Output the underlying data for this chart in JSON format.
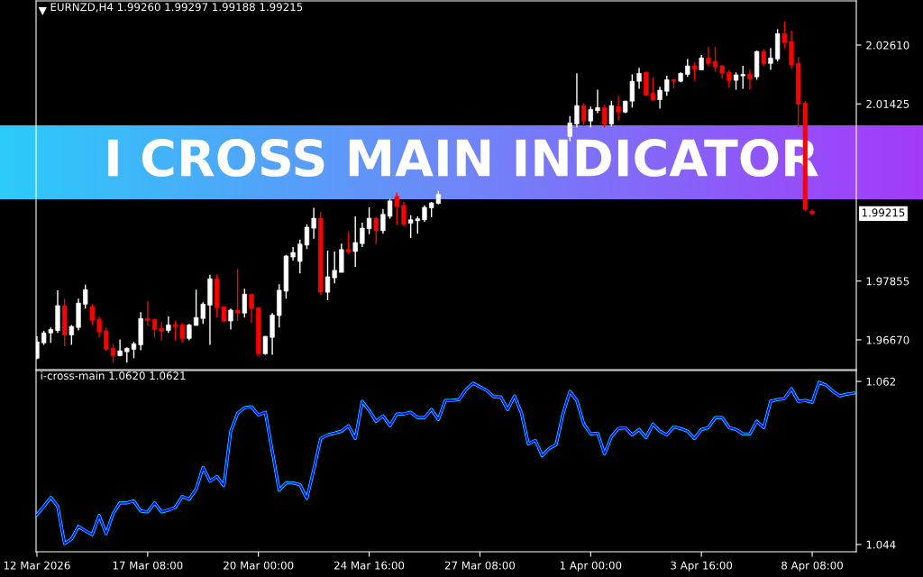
{
  "chart_data": [
    {
      "type": "candlestick",
      "title": "I CROSS MAIN INDICATOR",
      "annotations": [
        "EURNZD,H4 1.99260 1.99297 1.99188 1.99215",
        "1.99215"
      ],
      "categories": [
        null,
        null,
        null,
        null,
        null,
        null,
        null,
        null,
        null,
        null,
        null,
        null,
        null,
        null,
        null,
        null,
        null,
        null,
        null,
        null,
        null,
        null,
        null,
        null,
        null,
        null,
        null,
        null,
        null,
        null,
        null,
        null,
        null,
        null,
        null,
        null,
        null,
        null,
        null,
        null,
        null,
        null,
        null,
        null,
        null,
        null,
        null,
        null,
        null,
        null,
        null,
        null,
        null,
        null,
        null,
        null,
        null,
        null,
        null,
        null,
        null,
        null,
        null,
        null,
        null,
        null,
        null,
        null,
        null,
        null,
        null,
        null,
        null,
        null,
        null,
        null,
        null,
        null,
        null,
        null,
        null,
        null,
        null,
        null,
        null,
        null,
        null,
        null,
        null,
        null,
        null,
        null,
        null,
        null,
        null,
        null,
        null,
        null,
        null,
        null,
        null,
        null,
        null,
        null,
        null,
        null,
        null,
        null,
        null,
        null,
        null,
        null,
        null,
        null,
        null,
        null,
        null,
        null,
        null
      ],
      "ohlc": [
        [
          1.963,
          1.9674,
          1.9628,
          1.9663
        ],
        [
          1.9661,
          1.9685,
          1.9657,
          1.9681
        ],
        [
          1.9681,
          1.9692,
          1.9661,
          1.9688
        ],
        [
          1.9686,
          1.9767,
          1.9681,
          1.9736
        ],
        [
          1.9736,
          1.975,
          1.9654,
          1.9677
        ],
        [
          1.9677,
          1.9697,
          1.9657,
          1.9694
        ],
        [
          1.9692,
          1.975,
          1.9686,
          1.9741
        ],
        [
          1.9739,
          1.9778,
          1.973,
          1.9768
        ],
        [
          1.9734,
          1.9739,
          1.9697,
          1.9706
        ],
        [
          1.9708,
          1.9714,
          1.9672,
          1.9683
        ],
        [
          1.9685,
          1.9692,
          1.9645,
          1.9648
        ],
        [
          1.965,
          1.9659,
          1.9621,
          1.9635
        ],
        [
          1.9635,
          1.9668,
          1.9634,
          1.9645
        ],
        [
          1.9643,
          1.9652,
          1.9621,
          1.965
        ],
        [
          1.9648,
          1.9663,
          1.963,
          1.9659
        ],
        [
          1.9657,
          1.9723,
          1.9646,
          1.971
        ],
        [
          1.971,
          1.9745,
          1.9696,
          1.9706
        ],
        [
          1.9708,
          1.971,
          1.9672,
          1.9688
        ],
        [
          1.969,
          1.9703,
          1.9666,
          1.9685
        ],
        [
          1.9686,
          1.9714,
          1.9681,
          1.9697
        ],
        [
          1.9697,
          1.9705,
          1.9666,
          1.9694
        ],
        [
          1.9697,
          1.9701,
          1.9661,
          1.967
        ],
        [
          1.967,
          1.9699,
          1.9666,
          1.9697
        ],
        [
          1.9696,
          1.9768,
          1.9696,
          1.9712
        ],
        [
          1.971,
          1.9743,
          1.9699,
          1.9739
        ],
        [
          1.9737,
          1.9798,
          1.9657,
          1.979
        ],
        [
          1.979,
          1.9799,
          1.9712,
          1.9732
        ],
        [
          1.9734,
          1.9734,
          1.9703,
          1.9705
        ],
        [
          1.9705,
          1.973,
          1.9688,
          1.9727
        ],
        [
          1.9727,
          1.981,
          1.9705,
          1.9721
        ],
        [
          1.9721,
          1.977,
          1.9712,
          1.9759
        ],
        [
          1.9759,
          1.9759,
          1.9701,
          1.973
        ],
        [
          1.9732,
          1.9732,
          1.9635,
          1.9639
        ],
        [
          1.9639,
          1.9675,
          1.9637,
          1.9674
        ],
        [
          1.9672,
          1.9721,
          1.9637,
          1.9717
        ],
        [
          1.9716,
          1.9779,
          1.9692,
          1.9767
        ],
        [
          1.9765,
          1.9838,
          1.975,
          1.9836
        ],
        [
          1.9834,
          1.9854,
          1.9827,
          1.9843
        ],
        [
          1.9825,
          1.9869,
          1.9801,
          1.986
        ],
        [
          1.9858,
          1.99,
          1.985,
          1.9894
        ],
        [
          1.9892,
          1.9933,
          1.9871,
          1.9912
        ],
        [
          1.9912,
          1.9925,
          1.9758,
          1.9763
        ],
        [
          1.9763,
          1.9847,
          1.9747,
          1.9794
        ],
        [
          1.9792,
          1.9845,
          1.9781,
          1.9807
        ],
        [
          1.9803,
          1.9861,
          1.9803,
          1.9849
        ],
        [
          1.9849,
          1.9885,
          1.984,
          1.9845
        ],
        [
          1.9845,
          1.9916,
          1.9814,
          1.9863
        ],
        [
          1.9861,
          1.9903,
          1.9854,
          1.9892
        ],
        [
          1.9891,
          1.9934,
          1.988,
          1.9912
        ],
        [
          1.9912,
          1.9914,
          1.986,
          1.9887
        ],
        [
          1.9887,
          1.9931,
          1.9881,
          1.992
        ],
        [
          1.9916,
          1.9951,
          1.9911,
          1.9947
        ],
        [
          1.9956,
          1.9964,
          1.9898,
          1.9936
        ],
        [
          1.9938,
          1.9945,
          1.9896,
          1.99
        ],
        [
          1.9902,
          1.9918,
          1.9872,
          1.9909
        ],
        [
          1.9907,
          1.9916,
          1.9881,
          1.9911
        ],
        [
          1.9909,
          1.9938,
          1.9905,
          1.9934
        ],
        [
          1.9933,
          1.9945,
          1.9914,
          1.9943
        ],
        [
          1.9942,
          1.9967,
          1.994,
          1.996
        ],
        null,
        null,
        null,
        null,
        null,
        null,
        null,
        null,
        null,
        null,
        null,
        null,
        null,
        null,
        null,
        null,
        null,
        null,
        [
          2.0077,
          2.0118,
          2.0067,
          2.0104
        ],
        [
          2.0102,
          2.0204,
          2.0095,
          2.0139
        ],
        [
          2.0139,
          2.0144,
          2.0097,
          2.0108
        ],
        [
          2.0108,
          2.0137,
          2.0095,
          2.0131
        ],
        [
          2.0129,
          2.0171,
          2.0124,
          2.0135
        ],
        [
          2.0135,
          2.014,
          2.0095,
          2.0102
        ],
        [
          2.0102,
          2.0149,
          2.0097,
          2.0139
        ],
        [
          2.0137,
          2.0159,
          2.0109,
          2.0126
        ],
        [
          2.0126,
          2.0149,
          2.0124,
          2.0148
        ],
        [
          2.0148,
          2.0202,
          2.0135,
          2.0188
        ],
        [
          2.0188,
          2.0215,
          2.0173,
          2.0204
        ],
        [
          2.0206,
          2.0208,
          2.0159,
          2.016
        ],
        [
          2.0164,
          2.0195,
          2.0149,
          2.0151
        ],
        [
          2.0151,
          2.0177,
          2.0133,
          2.017
        ],
        [
          2.0168,
          2.0199,
          2.0159,
          2.0191
        ],
        [
          2.0191,
          2.0193,
          2.0173,
          2.0188
        ],
        [
          2.0188,
          2.0206,
          2.0186,
          2.0204
        ],
        [
          2.0202,
          2.0233,
          2.0197,
          2.0219
        ],
        [
          2.0219,
          2.0226,
          2.019,
          2.0213
        ],
        [
          2.0211,
          2.0241,
          2.021,
          2.0235
        ],
        [
          2.0235,
          2.0257,
          2.0219,
          2.0224
        ],
        [
          2.0228,
          2.0257,
          2.0208,
          2.0217
        ],
        [
          2.0219,
          2.0221,
          2.0193,
          2.0204
        ],
        [
          2.0206,
          2.0211,
          2.0175,
          2.019
        ],
        [
          2.019,
          2.0206,
          2.0171,
          2.0201
        ],
        [
          2.0199,
          2.0219,
          2.0173,
          2.0202
        ],
        [
          2.0202,
          2.0211,
          2.0171,
          2.0193
        ],
        [
          2.0197,
          2.025,
          2.0191,
          2.0248
        ],
        [
          2.0248,
          2.0253,
          2.0219,
          2.0224
        ],
        [
          2.0224,
          2.0255,
          2.0211,
          2.0235
        ],
        [
          2.0233,
          2.0293,
          2.0228,
          2.0284
        ],
        [
          2.0284,
          2.0308,
          2.0255,
          2.0266
        ],
        [
          2.0268,
          2.029,
          2.0213,
          2.0221
        ],
        [
          2.0224,
          2.0237,
          2.0095,
          2.0142
        ],
        [
          2.0144,
          2.0149,
          1.9926,
          1.993
        ],
        [
          1.9926,
          1.99297,
          1.99188,
          1.99215
        ],
        null,
        null,
        null,
        null,
        null,
        null
      ],
      "colors": [
        "#ffffff",
        "#ffffff",
        "#ffffff",
        "#ffffff",
        "#ff0000",
        "#ffffff",
        "#ffffff",
        "#ffffff",
        "#ff0000",
        "#ff0000",
        "#ff0000",
        "#ff0000",
        "#ffffff",
        "#ffffff",
        "#ffffff",
        "#ffffff",
        "#ff0000",
        "#ff0000",
        "#ff0000",
        "#ffffff",
        "#ff0000",
        "#ff0000",
        "#ffffff",
        "#ffffff",
        "#ffffff",
        "#ffffff",
        "#ff0000",
        "#ff0000",
        "#ffffff",
        "#ff0000",
        "#ffffff",
        "#ff0000",
        "#ff0000",
        "#ffffff",
        "#ffffff",
        "#ffffff",
        "#ffffff",
        "#ffffff",
        "#ffffff",
        "#ffffff",
        "#ffffff",
        "#ff0000",
        "#ffffff",
        "#ffffff",
        "#ffffff",
        "#ff0000",
        "#ffffff",
        "#ffffff",
        "#ffffff",
        "#ff0000",
        "#ffffff",
        "#ffffff",
        "#ff0000",
        "#ff0000",
        "#ffffff",
        "#ffffff",
        "#ffffff",
        "#ffffff",
        "#ffffff",
        null,
        null,
        null,
        null,
        null,
        null,
        null,
        null,
        null,
        null,
        null,
        null,
        null,
        null,
        null,
        null,
        null,
        null,
        "#ffffff",
        "#ffffff",
        "#ff0000",
        "#ffffff",
        "#ffffff",
        "#ff0000",
        "#ffffff",
        "#ff0000",
        "#ffffff",
        "#ffffff",
        "#ffffff",
        "#ff0000",
        "#ff0000",
        "#ffffff",
        "#ffffff",
        "#ff0000",
        "#ffffff",
        "#ffffff",
        "#ff0000",
        "#ffffff",
        "#ff0000",
        "#ff0000",
        "#ff0000",
        "#ff0000",
        "#ffffff",
        "#ffffff",
        "#ff0000",
        "#ffffff",
        "#ff0000",
        "#ffffff",
        "#ffffff",
        "#ff0000",
        "#ff0000",
        "#ff0000",
        "#ff0000",
        "#ff0000",
        null,
        null,
        null,
        null,
        null,
        null
      ],
      "ylim": [
        1.9607,
        2.035
      ],
      "yticks": [
        {
          "value": 1.9667,
          "label": "1.96670"
        },
        {
          "value": 1.97855,
          "label": "1.97855"
        },
        {
          "value": 2.01425,
          "label": "2.01425"
        },
        {
          "value": 2.0261,
          "label": "2.02610"
        }
      ],
      "tick_labels": "y"
    },
    {
      "type": "line",
      "title": "i-cross-main 1.0620 1.0621",
      "categories": [
        "12 Mar 2026",
        null,
        null,
        null,
        null,
        null,
        null,
        null,
        null,
        null,
        null,
        null,
        null,
        null,
        null,
        null,
        "17 Mar 08:00",
        null,
        null,
        null,
        null,
        null,
        null,
        null,
        null,
        null,
        null,
        null,
        null,
        null,
        null,
        null,
        "20 Mar 00:00",
        null,
        null,
        null,
        null,
        null,
        null,
        null,
        null,
        null,
        null,
        null,
        null,
        null,
        null,
        null,
        "24 Mar 16:00",
        null,
        null,
        null,
        null,
        null,
        null,
        null,
        null,
        null,
        null,
        null,
        null,
        null,
        null,
        null,
        "27 Mar 08:00",
        null,
        null,
        null,
        null,
        null,
        null,
        null,
        null,
        null,
        null,
        null,
        null,
        null,
        null,
        null,
        "1 Apr 00:00",
        null,
        null,
        null,
        null,
        null,
        null,
        null,
        null,
        null,
        null,
        null,
        null,
        null,
        null,
        null,
        "3 Apr 16:00",
        null,
        null,
        null,
        null,
        null,
        null,
        null,
        null,
        null,
        null,
        null,
        null,
        null,
        null,
        null,
        "8 Apr 08:00",
        null,
        null,
        null,
        null,
        null,
        null
      ],
      "series": [
        {
          "color": "#00ffff",
          "values": [
            1.0473,
            1.0482,
            1.0492,
            1.0482,
            1.0441,
            1.0446,
            1.046,
            1.0455,
            1.0451,
            1.0472,
            1.0452,
            1.0474,
            1.0486,
            1.0486,
            1.0488,
            1.0477,
            1.0476,
            1.0486,
            1.0476,
            1.0478,
            1.0481,
            1.0493,
            1.049,
            1.0501,
            1.0525,
            1.051,
            1.0515,
            1.0505,
            1.0565,
            1.0585,
            1.0591,
            1.0592,
            1.0583,
            1.0586,
            1.0543,
            1.05,
            1.0508,
            1.0508,
            1.0506,
            1.0491,
            1.0523,
            1.0557,
            1.0561,
            1.0563,
            1.0565,
            1.0571,
            1.0557,
            1.0598,
            1.0588,
            1.0576,
            1.0582,
            1.0571,
            1.0584,
            1.0584,
            1.0586,
            1.058,
            1.058,
            1.0589,
            1.0578,
            1.0599,
            1.0599,
            1.06,
            1.0611,
            1.0618,
            1.0614,
            1.061,
            1.0603,
            1.0603,
            1.0589,
            1.0604,
            1.0585,
            1.0551,
            1.0555,
            1.0538,
            1.0546,
            1.055,
            1.0584,
            1.0609,
            1.0599,
            1.0573,
            1.0562,
            1.0563,
            1.054,
            1.0559,
            1.0568,
            1.0569,
            1.0561,
            1.0567,
            1.0558,
            1.0573,
            1.0565,
            1.0561,
            1.057,
            1.0568,
            1.0565,
            1.0557,
            1.0567,
            1.0569,
            1.058,
            1.058,
            1.0569,
            1.0567,
            1.0562,
            1.0562,
            1.0576,
            1.0569,
            1.0598,
            1.06,
            1.0601,
            1.0612,
            1.0598,
            1.0599,
            1.0597,
            1.0619,
            1.0616,
            1.0609,
            1.0604,
            1.0606,
            1.0607
          ]
        },
        {
          "color": "#0000ff",
          "values": [
            1.0473,
            1.0482,
            1.0492,
            1.0482,
            1.0441,
            1.0446,
            1.046,
            1.0455,
            1.0451,
            1.0472,
            1.0452,
            1.0474,
            1.0486,
            1.0486,
            1.0488,
            1.0477,
            1.0476,
            1.0486,
            1.0476,
            1.0478,
            1.0481,
            1.0493,
            1.049,
            1.0501,
            1.0525,
            1.051,
            1.0515,
            1.0505,
            1.0565,
            1.0585,
            1.0591,
            1.0592,
            1.0583,
            1.0586,
            1.0543,
            1.05,
            1.0508,
            1.0508,
            1.0506,
            1.0491,
            1.0523,
            1.0557,
            1.0561,
            1.0563,
            1.0565,
            1.0571,
            1.0557,
            1.0598,
            1.0588,
            1.0576,
            1.0582,
            1.0571,
            1.0584,
            1.0584,
            1.0586,
            1.058,
            1.058,
            1.0589,
            1.0578,
            1.0599,
            1.0599,
            1.06,
            1.0611,
            1.0618,
            1.0614,
            1.061,
            1.0603,
            1.0603,
            1.0589,
            1.0604,
            1.0585,
            1.0551,
            1.0555,
            1.0538,
            1.0546,
            1.055,
            1.0584,
            1.0609,
            1.0599,
            1.0573,
            1.0562,
            1.0563,
            1.054,
            1.0559,
            1.0568,
            1.0569,
            1.0561,
            1.0567,
            1.0558,
            1.0573,
            1.0565,
            1.0561,
            1.057,
            1.0568,
            1.0565,
            1.0557,
            1.0567,
            1.0569,
            1.058,
            1.058,
            1.0569,
            1.0567,
            1.0562,
            1.0562,
            1.0576,
            1.0569,
            1.0598,
            1.06,
            1.0601,
            1.0612,
            1.0598,
            1.0599,
            1.0597,
            1.0619,
            1.0616,
            1.0609,
            1.0604,
            1.0606,
            1.0607
          ]
        }
      ],
      "ylim": [
        1.0432,
        1.0632
      ],
      "yticks": [
        1.044,
        1.062
      ]
    }
  ]
}
